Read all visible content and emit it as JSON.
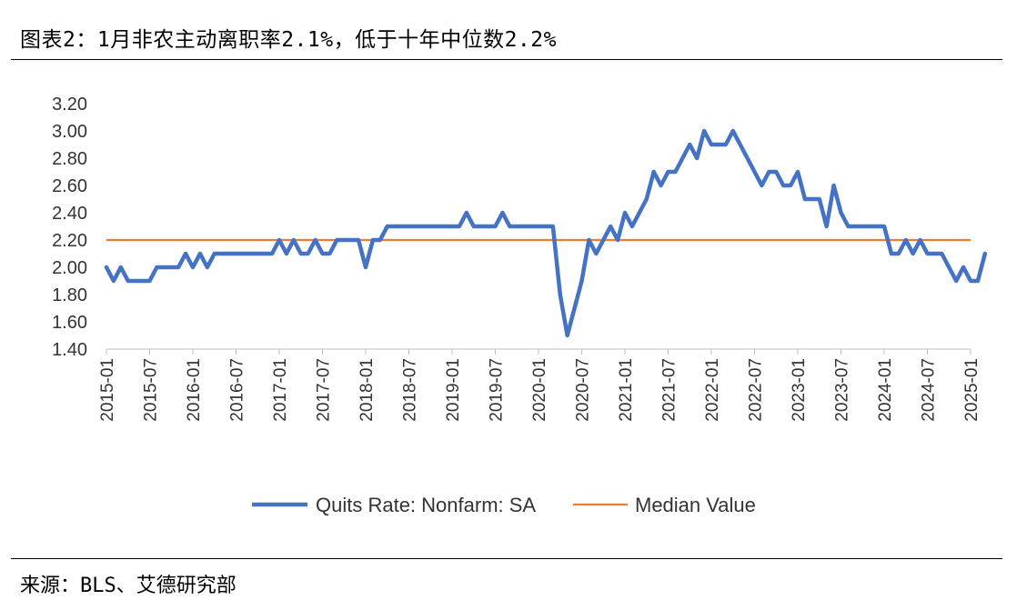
{
  "header": {
    "title": "图表2：1月非农主动离职率2.1%，低于十年中位数2.2%"
  },
  "footer": {
    "source": "来源：BLS、艾德研究部"
  },
  "chart_data": {
    "type": "line",
    "ylim": [
      1.4,
      3.2
    ],
    "yticks": [
      "1.40",
      "1.60",
      "1.80",
      "2.00",
      "2.20",
      "2.40",
      "2.60",
      "2.80",
      "3.00",
      "3.20"
    ],
    "xticks": [
      "2015-01",
      "2015-07",
      "2016-01",
      "2016-07",
      "2017-01",
      "2017-07",
      "2018-01",
      "2018-07",
      "2019-01",
      "2019-07",
      "2020-01",
      "2020-07",
      "2021-01",
      "2021-07",
      "2022-01",
      "2022-07",
      "2023-01",
      "2023-07",
      "2024-01",
      "2024-07",
      "2025-01"
    ],
    "x_start": "2015-01",
    "x_end": "2025-01",
    "grid": false,
    "legend_position": "bottom",
    "colors": {
      "quits": "#4472C4",
      "median": "#ED7D31"
    },
    "series": [
      {
        "name": "Quits Rate: Nonfarm: SA",
        "values": [
          2.0,
          1.9,
          2.0,
          1.9,
          1.9,
          1.9,
          1.9,
          2.0,
          2.0,
          2.0,
          2.0,
          2.1,
          2.0,
          2.1,
          2.0,
          2.1,
          2.1,
          2.1,
          2.1,
          2.1,
          2.1,
          2.1,
          2.1,
          2.1,
          2.2,
          2.1,
          2.2,
          2.1,
          2.1,
          2.2,
          2.1,
          2.1,
          2.2,
          2.2,
          2.2,
          2.2,
          2.0,
          2.2,
          2.2,
          2.3,
          2.3,
          2.3,
          2.3,
          2.3,
          2.3,
          2.3,
          2.3,
          2.3,
          2.3,
          2.3,
          2.4,
          2.3,
          2.3,
          2.3,
          2.3,
          2.4,
          2.3,
          2.3,
          2.3,
          2.3,
          2.3,
          2.3,
          2.3,
          1.8,
          1.5,
          1.7,
          1.9,
          2.2,
          2.1,
          2.2,
          2.3,
          2.2,
          2.4,
          2.3,
          2.4,
          2.5,
          2.7,
          2.6,
          2.7,
          2.7,
          2.8,
          2.9,
          2.8,
          3.0,
          2.9,
          2.9,
          2.9,
          3.0,
          2.9,
          2.8,
          2.7,
          2.6,
          2.7,
          2.7,
          2.6,
          2.6,
          2.7,
          2.5,
          2.5,
          2.5,
          2.3,
          2.6,
          2.4,
          2.3,
          2.3,
          2.3,
          2.3,
          2.3,
          2.3,
          2.1,
          2.1,
          2.2,
          2.1,
          2.2,
          2.1,
          2.1,
          2.1,
          2.0,
          1.9,
          2.0,
          1.9,
          1.9,
          2.1
        ]
      },
      {
        "name": "Median Value",
        "values": [
          2.2,
          2.2
        ]
      }
    ]
  }
}
